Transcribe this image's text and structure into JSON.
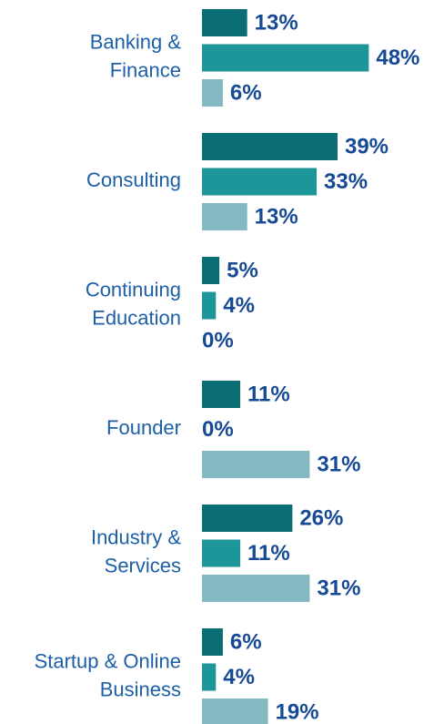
{
  "chart_data": {
    "type": "hbar",
    "categories": [
      [
        "Banking &",
        "Finance"
      ],
      [
        "Consulting"
      ],
      [
        "Continuing",
        "Education"
      ],
      [
        "Founder"
      ],
      [
        "Industry &",
        "Services"
      ],
      [
        "Startup & Online",
        "Business"
      ]
    ],
    "series": [
      {
        "color": "#0b6e75",
        "values": [
          13,
          39,
          5,
          11,
          26,
          6
        ],
        "value_labels": [
          "13%",
          "39%",
          "5%",
          "11%",
          "26%",
          "6%"
        ]
      },
      {
        "color": "#1c9699",
        "values": [
          48,
          33,
          4,
          0,
          11,
          4
        ],
        "value_labels": [
          "48%",
          "33%",
          "4%",
          "0%",
          "11%",
          "4%"
        ]
      },
      {
        "color": "#84b9c1",
        "values": [
          6,
          13,
          0,
          31,
          31,
          19
        ],
        "value_labels": [
          "6%",
          "13%",
          "0%",
          "31%",
          "31%",
          "19%"
        ]
      }
    ]
  }
}
